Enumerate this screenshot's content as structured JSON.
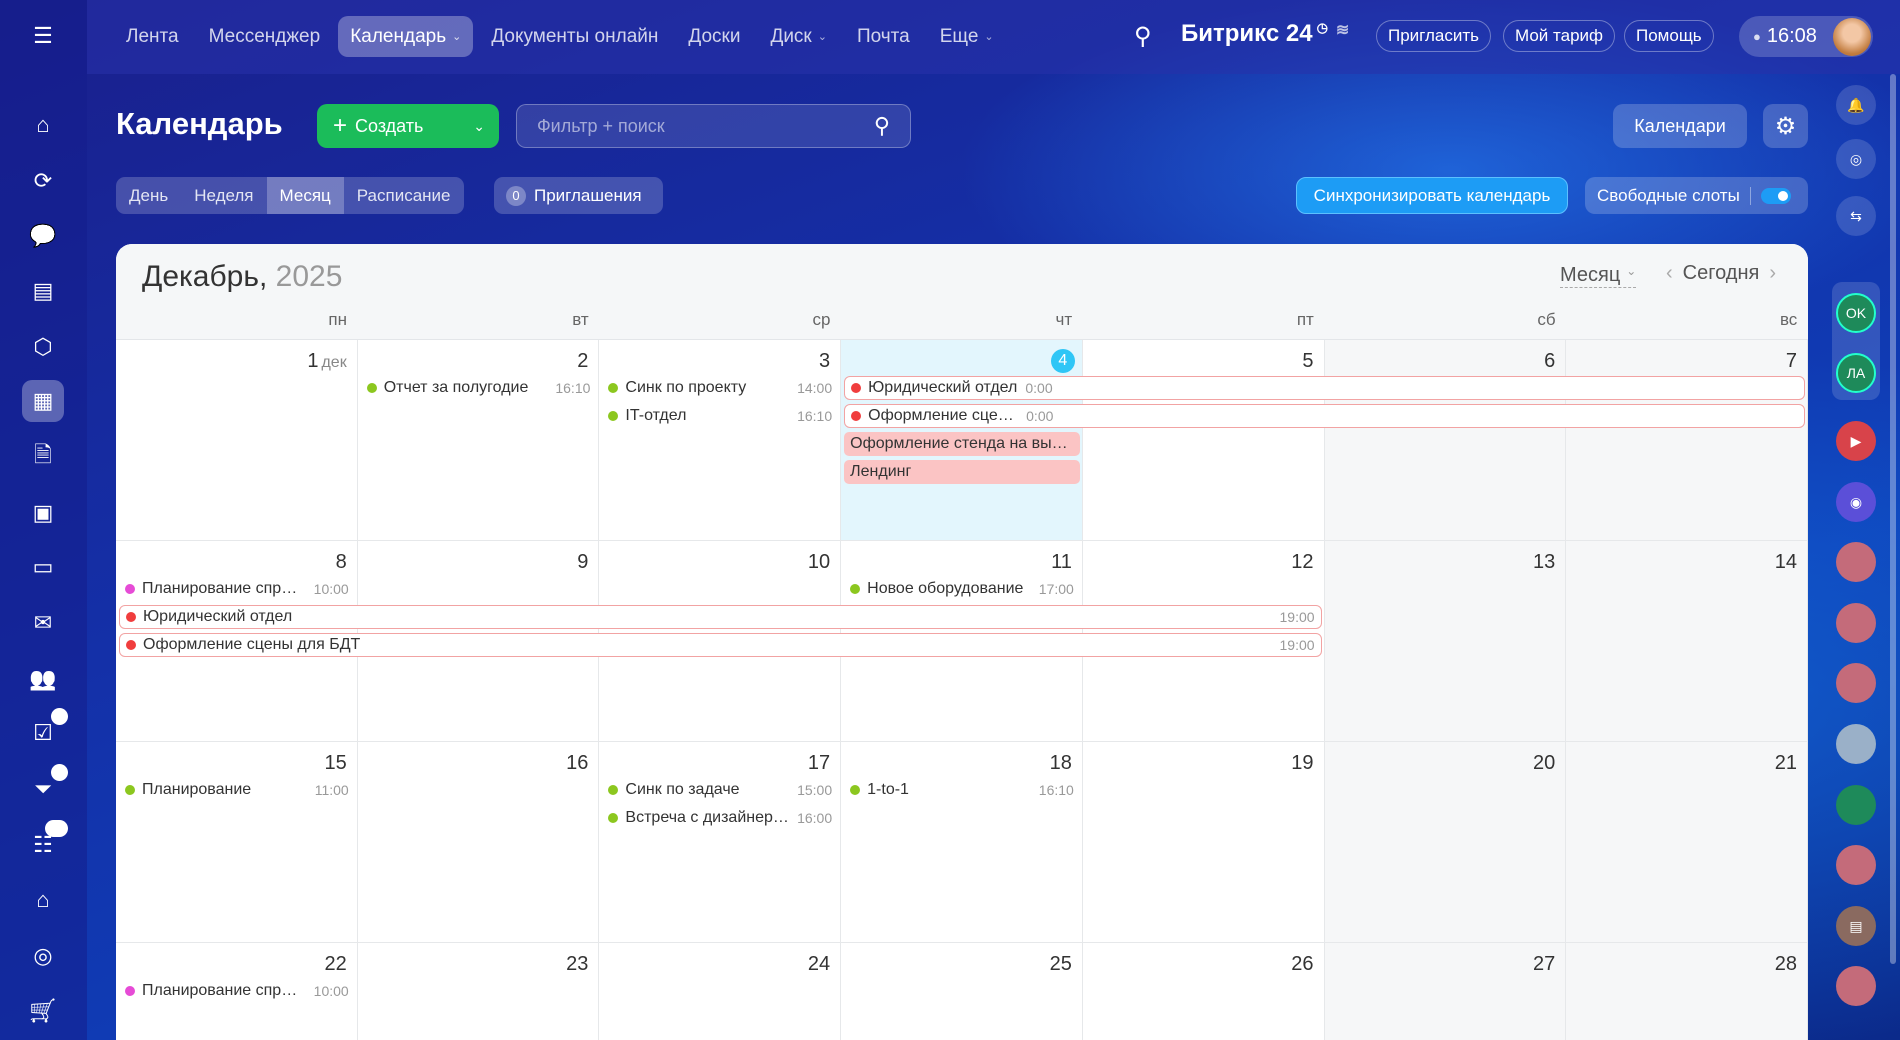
{
  "topnav": {
    "items": [
      {
        "label": "Лента"
      },
      {
        "label": "Мессенджер"
      },
      {
        "label": "Календарь",
        "active": true,
        "dropdown": true
      },
      {
        "label": "Документы онлайн"
      },
      {
        "label": "Доски"
      },
      {
        "label": "Диск",
        "dropdown": true
      },
      {
        "label": "Почта"
      },
      {
        "label": "Еще",
        "dropdown": true
      }
    ],
    "brand": "Битрикс 24",
    "invite": "Пригласить",
    "tariff": "Мой тариф",
    "help": "Помощь",
    "time": "16:08"
  },
  "left_sidebar": {
    "items": [
      {
        "icon": "menu-icon"
      },
      {
        "icon": "home-icon"
      },
      {
        "icon": "flows-icon"
      },
      {
        "icon": "chat-icon"
      },
      {
        "icon": "feed-icon"
      },
      {
        "icon": "hexagon-icon"
      },
      {
        "icon": "calendar-icon",
        "active": true
      },
      {
        "icon": "document-icon"
      },
      {
        "icon": "presentation-icon"
      },
      {
        "icon": "drive-icon"
      },
      {
        "icon": "mail-icon"
      },
      {
        "icon": "people-icon"
      },
      {
        "icon": "tasks-icon",
        "badge": "4"
      },
      {
        "icon": "crm-funnel-icon",
        "badge": "4"
      },
      {
        "icon": "list-icon",
        "badge": "26"
      },
      {
        "icon": "warehouse-icon"
      },
      {
        "icon": "target-icon"
      },
      {
        "icon": "cart-icon"
      }
    ]
  },
  "right_sidebar": {
    "items": [
      {
        "icon": "bell-icon"
      },
      {
        "icon": "copilot-icon"
      },
      {
        "icon": "chat-sync-icon"
      },
      {
        "label": "OK",
        "icon": "group-avatar"
      },
      {
        "label": "ЛА",
        "icon": "group-avatar"
      },
      {
        "icon": "video-icon"
      },
      {
        "icon": "copilot-chat-icon"
      },
      {
        "icon": "user-avatar"
      },
      {
        "icon": "user-avatar"
      },
      {
        "icon": "user-avatar"
      },
      {
        "icon": "cat-avatar"
      },
      {
        "icon": "group-avatar"
      },
      {
        "icon": "user-avatar"
      },
      {
        "icon": "contact-card-icon"
      },
      {
        "icon": "user-avatar"
      }
    ]
  },
  "page": {
    "title": "Календарь",
    "create": "Создать",
    "search_placeholder": "Фильтр + поиск",
    "calendars": "Календари",
    "views": [
      {
        "label": "День"
      },
      {
        "label": "Неделя"
      },
      {
        "label": "Месяц",
        "active": true
      },
      {
        "label": "Расписание"
      }
    ],
    "invites_count": "0",
    "invites": "Приглашения",
    "sync": "Синхронизировать календарь",
    "free_slots": "Свободные слоты",
    "free_slots_on": true
  },
  "calendar": {
    "month": "Декабрь,",
    "year": "2025",
    "view": "Месяц",
    "today": "Сегодня",
    "weekdays": [
      "пн",
      "вт",
      "ср",
      "чт",
      "пт",
      "сб",
      "вс"
    ],
    "colors": {
      "green": "#8cc71f",
      "red": "#f03d3d",
      "magenta": "#e64bd6",
      "today": "#2fc6f6"
    },
    "weeks": [
      {
        "days": [
          {
            "num": "1",
            "suffix": "дек"
          },
          {
            "num": "2"
          },
          {
            "num": "3"
          },
          {
            "num": "4",
            "today": true
          },
          {
            "num": "5"
          },
          {
            "num": "6"
          },
          {
            "num": "7"
          }
        ],
        "events": [
          {
            "col": 1,
            "span": 1,
            "row": 0,
            "title": "Отчет за полугодие",
            "time": "16:10",
            "color": "green"
          },
          {
            "col": 2,
            "span": 1,
            "row": 0,
            "title": "Синк по проекту",
            "time": "14:00",
            "color": "green"
          },
          {
            "col": 2,
            "span": 1,
            "row": 1,
            "title": "IT-отдел",
            "time": "16:10",
            "color": "green"
          },
          {
            "col": 3,
            "span": 4,
            "row": 0,
            "title": "Юридический отдел",
            "time": "0:00",
            "color": "red",
            "style": "span"
          },
          {
            "col": 3,
            "span": 4,
            "row": 1,
            "title": "Оформление сцены для БДТ",
            "time": "0:00",
            "color": "red",
            "style": "span",
            "short": true
          },
          {
            "col": 3,
            "span": 1,
            "row": 2,
            "title": "Оформление стенда на выставку",
            "style": "fill"
          },
          {
            "col": 3,
            "span": 1,
            "row": 3,
            "title": "Лендинг",
            "style": "fill"
          }
        ]
      },
      {
        "days": [
          {
            "num": "8"
          },
          {
            "num": "9"
          },
          {
            "num": "10"
          },
          {
            "num": "11"
          },
          {
            "num": "12"
          },
          {
            "num": "13"
          },
          {
            "num": "14"
          }
        ],
        "events": [
          {
            "col": 0,
            "span": 1,
            "row": 0,
            "title": "Планирование спринта",
            "time": "10:00",
            "color": "magenta"
          },
          {
            "col": 3,
            "span": 1,
            "row": 0,
            "title": "Новое оборудование",
            "time": "17:00",
            "color": "green"
          },
          {
            "col": 0,
            "span": 5,
            "row": 1,
            "title": "Юридический отдел",
            "time": "19:00",
            "color": "red",
            "style": "span",
            "endtime": true
          },
          {
            "col": 0,
            "span": 5,
            "row": 2,
            "title": "Оформление сцены для БДТ",
            "time": "19:00",
            "color": "red",
            "style": "span",
            "endtime": true
          }
        ]
      },
      {
        "days": [
          {
            "num": "15"
          },
          {
            "num": "16"
          },
          {
            "num": "17"
          },
          {
            "num": "18"
          },
          {
            "num": "19"
          },
          {
            "num": "20"
          },
          {
            "num": "21"
          }
        ],
        "events": [
          {
            "col": 0,
            "span": 1,
            "row": 0,
            "title": "Планирование",
            "time": "11:00",
            "color": "green"
          },
          {
            "col": 2,
            "span": 1,
            "row": 0,
            "title": "Синк по задаче",
            "time": "15:00",
            "color": "green"
          },
          {
            "col": 2,
            "span": 1,
            "row": 1,
            "title": "Встреча с дизайнером",
            "time": "16:00",
            "color": "green"
          },
          {
            "col": 3,
            "span": 1,
            "row": 0,
            "title": "1-to-1",
            "time": "16:10",
            "color": "green"
          }
        ]
      },
      {
        "days": [
          {
            "num": "22"
          },
          {
            "num": "23"
          },
          {
            "num": "24"
          },
          {
            "num": "25"
          },
          {
            "num": "26"
          },
          {
            "num": "27"
          },
          {
            "num": "28"
          }
        ],
        "events": [
          {
            "col": 0,
            "span": 1,
            "row": 0,
            "title": "Планирование спринта",
            "time": "10:00",
            "color": "magenta"
          }
        ]
      }
    ]
  }
}
